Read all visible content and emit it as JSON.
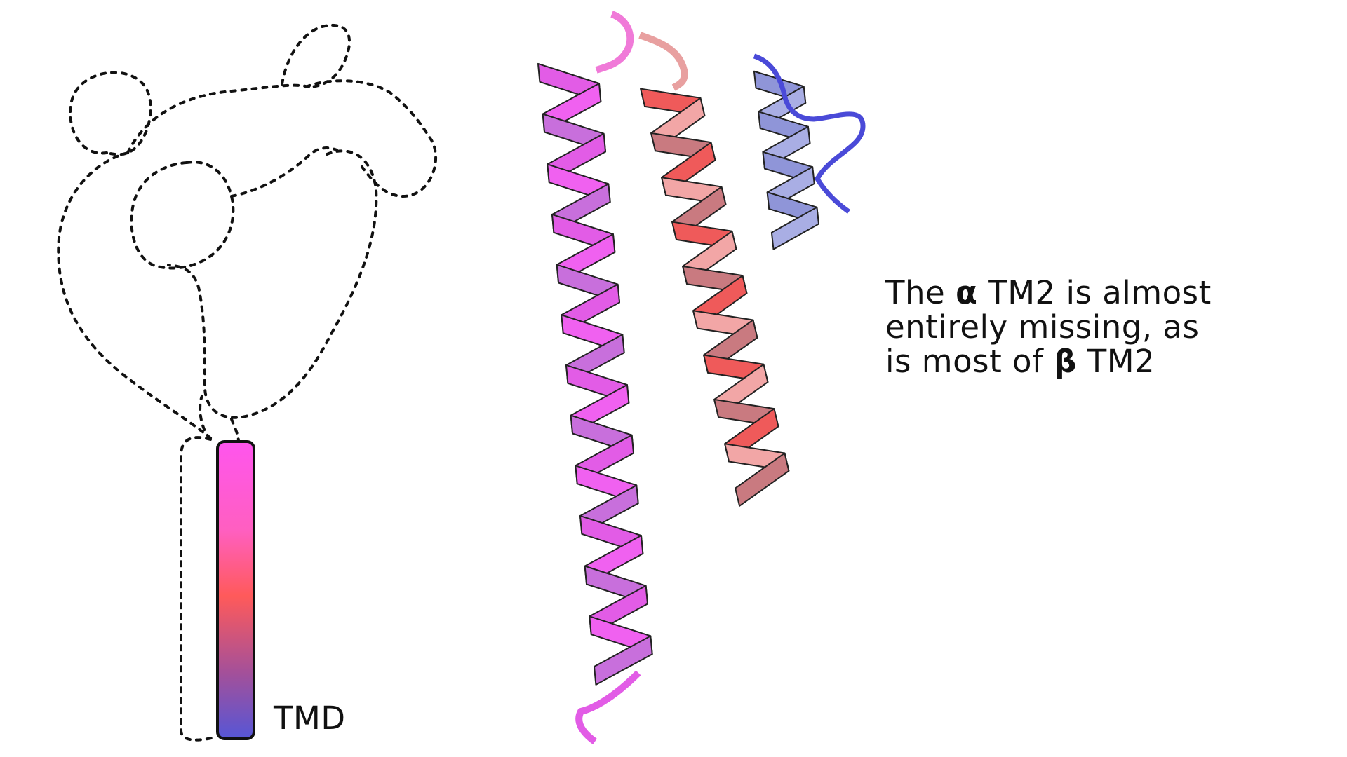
{
  "schematic": {
    "tmd_label": "TMD",
    "tmd_gradient": [
      "#ff55ee",
      "#ff5fc0",
      "#ff5a5a",
      "#a3509a",
      "#5656d6"
    ]
  },
  "caption": {
    "line1": {
      "pre": "The ",
      "greek": "α",
      "post": " TM2 is almost"
    },
    "line2": {
      "text": "entirely missing, as"
    },
    "line3": {
      "pre": "is most of ",
      "greek": "β",
      "post": " TM2"
    }
  },
  "structure": {
    "alpha_helix_colors": [
      "#e25ce6",
      "#f061f0",
      "#c86fdc"
    ],
    "beta_helix_colors": [
      "#ef5a5a",
      "#f2a6a6",
      "#c97a80"
    ],
    "third_helix_color": "#8f95d8",
    "loop_color": "#4a4ad8"
  }
}
